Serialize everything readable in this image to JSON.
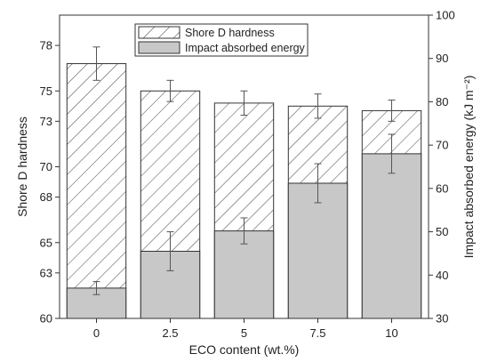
{
  "chart_data": {
    "type": "bar",
    "categories": [
      "0",
      "2.5",
      "5",
      "7.5",
      "10"
    ],
    "xlabel": "ECO  content (wt.%)",
    "ylabel_left": "Shore D hardness",
    "ylabel_right": "Impact absorbed energy (kJ m⁻²)",
    "left_axis": {
      "range": [
        60,
        80
      ],
      "ticks": [
        60,
        63,
        65,
        68,
        70,
        73,
        75,
        78
      ],
      "tick_labels": [
        "60",
        "63",
        "65",
        "68",
        "70",
        "73",
        "75",
        "78"
      ]
    },
    "right_axis": {
      "range": [
        30,
        100
      ],
      "ticks": [
        30,
        40,
        50,
        60,
        70,
        80,
        90,
        100
      ],
      "tick_labels": [
        "30",
        "40",
        "50",
        "60",
        "70",
        "80",
        "90",
        "100"
      ]
    },
    "series": [
      {
        "name": "Shore D hardness",
        "axis": "left",
        "pattern": "hatched",
        "values": [
          76.8,
          75.0,
          74.2,
          74.0,
          73.7
        ],
        "errors": [
          1.1,
          0.7,
          0.8,
          0.8,
          0.7
        ]
      },
      {
        "name": "Impact absorbed energy",
        "axis": "right",
        "pattern": "solid",
        "color": "#c8c8c8",
        "values": [
          37,
          45.5,
          50.2,
          61.2,
          68
        ],
        "errors": [
          1.5,
          4.5,
          3,
          4.5,
          4.5
        ]
      }
    ],
    "legend_position": "top-center",
    "grid": false
  }
}
